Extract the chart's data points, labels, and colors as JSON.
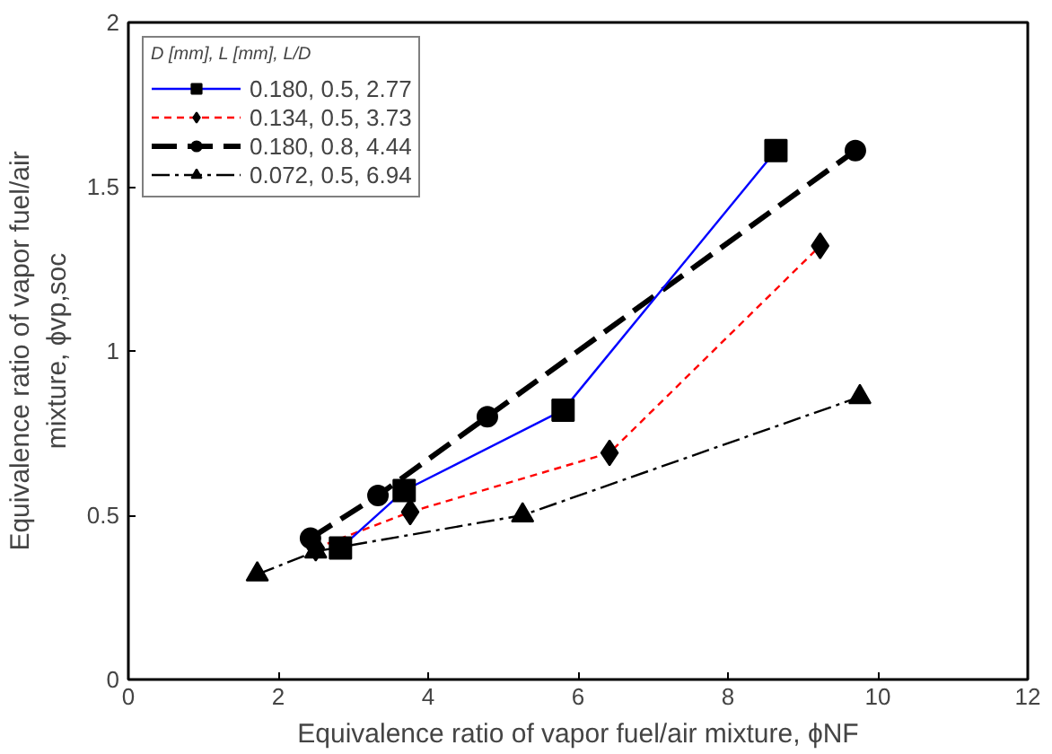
{
  "chart_data": {
    "type": "line",
    "xlabel": "Equivalence ratio of vapor fuel/air mixture, ϕNF",
    "ylabel": "Equivalence ratio of vapor fuel/air\nmixture, ϕvp,soc",
    "legend_title": "D [mm], L [mm], L/D",
    "series": [
      {
        "name": "0.180, 0.5, 2.77",
        "color": "#0000ff",
        "marker": "square",
        "line_style": "solid",
        "x": [
          2.83,
          3.68,
          5.8,
          8.64
        ],
        "values": [
          0.4,
          0.575,
          0.82,
          1.61
        ]
      },
      {
        "name": "0.134, 0.5, 3.73",
        "color": "#ff0000",
        "marker": "diamond",
        "line_style": "dashed",
        "x": [
          2.5,
          3.76,
          6.42,
          9.23
        ],
        "values": [
          0.4,
          0.51,
          0.69,
          1.32
        ]
      },
      {
        "name": "0.180, 0.8, 4.44",
        "color": "#000000",
        "marker": "circle",
        "line_style": "longdash",
        "x": [
          2.43,
          3.33,
          4.79,
          9.7
        ],
        "values": [
          0.43,
          0.56,
          0.8,
          1.61
        ]
      },
      {
        "name": "0.072, 0.5, 6.94",
        "color": "#000000",
        "marker": "triangle",
        "line_style": "dashdot",
        "x": [
          1.72,
          2.5,
          5.26,
          9.76
        ],
        "values": [
          0.32,
          0.39,
          0.5,
          0.86
        ]
      }
    ],
    "xlim": [
      0,
      12
    ],
    "xticks": [
      0,
      2,
      4,
      6,
      8,
      10,
      12
    ],
    "ylim": [
      0,
      2
    ],
    "yticks": [
      0,
      0.5,
      1,
      1.5,
      2
    ],
    "grid": false,
    "legend": "top left"
  }
}
